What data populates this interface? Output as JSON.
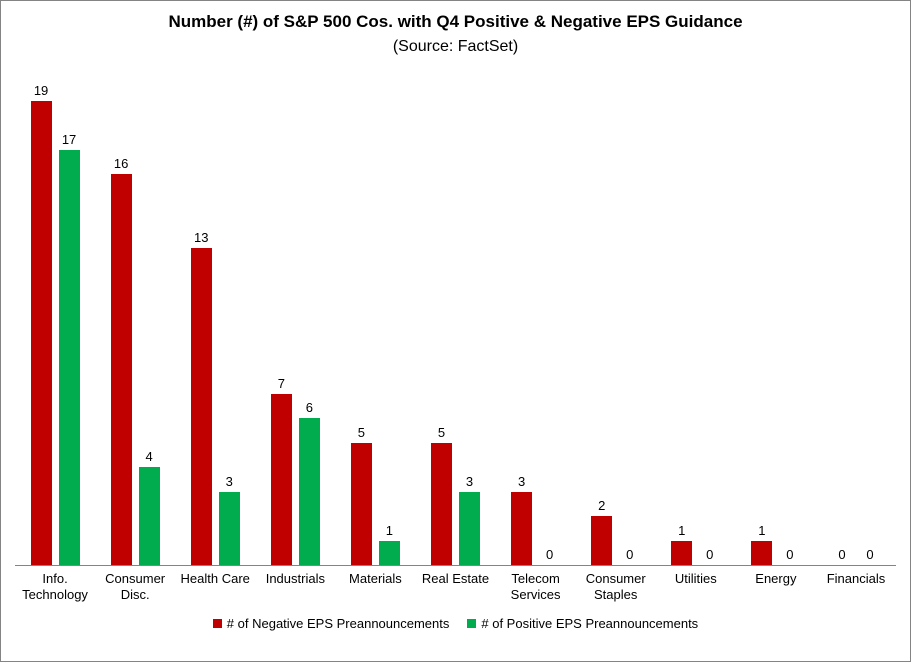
{
  "window": {
    "background": "#ffffff",
    "border_color": "#848484",
    "axis_color": "#848484",
    "text_color": "#000000"
  },
  "chart_data": {
    "type": "bar",
    "title": "Number (#) of S&P 500 Cos. with Q4 Positive & Negative EPS Guidance",
    "subtitle": "(Source: FactSet)",
    "categories": [
      "Info. Technology",
      "Consumer Disc.",
      "Health Care",
      "Industrials",
      "Materials",
      "Real Estate",
      "Telecom Services",
      "Consumer Staples",
      "Utilities",
      "Energy",
      "Financials"
    ],
    "series": [
      {
        "name": "# of Negative EPS Preannouncements",
        "color": "#C00000",
        "values": [
          19,
          16,
          13,
          7,
          5,
          5,
          3,
          2,
          1,
          1,
          0
        ]
      },
      {
        "name": "# of Positive EPS Preannouncements",
        "color": "#00AC4E",
        "values": [
          17,
          4,
          3,
          6,
          1,
          3,
          0,
          0,
          0,
          0,
          0
        ]
      }
    ],
    "ylim": [
      0,
      19
    ],
    "y_axis_visible": false,
    "grid": false,
    "data_labels": true,
    "legend_position": "bottom"
  }
}
